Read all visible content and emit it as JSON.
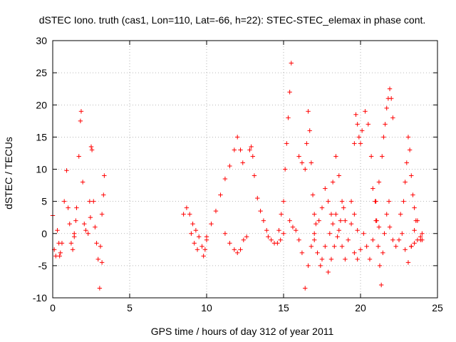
{
  "chart_data": {
    "type": "scatter",
    "title": "dSTEC Iono. truth (cas1, Lon=110, Lat=-66, h=22): STEC-STEC_elemax in phase cont.",
    "xlabel": "GPS time / hours of day 312 of year 2011",
    "ylabel": "dSTEC  / TECUs",
    "xlim": [
      0,
      25
    ],
    "ylim": [
      -10,
      30
    ],
    "x_ticks": [
      0,
      5,
      10,
      15,
      20,
      25
    ],
    "y_ticks": [
      -10,
      -5,
      0,
      5,
      10,
      15,
      20,
      25,
      30
    ],
    "x_tick_labels": [
      "0",
      "5",
      "10",
      "15",
      "20",
      "25"
    ],
    "y_tick_labels": [
      "-10",
      "-5",
      "0",
      "5",
      "10",
      "15",
      "20",
      "25",
      "30"
    ],
    "grid": true,
    "marker": "+",
    "series": [
      {
        "name": "STEC-STEC_elemax",
        "color": "#ff0000",
        "arcs": [
          {
            "x": [
              0.0,
              0.1,
              0.2,
              0.3,
              0.4,
              0.5
            ],
            "y": [
              2.8,
              -2.5,
              -3.5,
              0.5,
              -1.5,
              -3.0
            ]
          },
          {
            "x": [
              0.45,
              0.6,
              0.75,
              0.9,
              1.0,
              1.1,
              1.2,
              1.3,
              1.4,
              1.5
            ],
            "y": [
              -3.5,
              -1.5,
              5.0,
              9.8,
              4.0,
              1.5,
              -1.5,
              -2.5,
              -0.5,
              2.0
            ]
          },
          {
            "x": [
              1.4,
              1.55,
              1.7,
              1.8,
              1.85,
              1.95,
              2.05,
              2.15,
              2.3,
              2.45
            ],
            "y": [
              0.0,
              4.0,
              12.0,
              17.5,
              19.0,
              8.0,
              1.5,
              0.5,
              0.0,
              2.5
            ]
          },
          {
            "x": [
              2.4,
              2.5,
              2.55,
              2.65,
              2.75,
              2.85,
              2.95,
              3.05,
              3.2,
              3.35
            ],
            "y": [
              5.0,
              13.5,
              13.0,
              5.0,
              1.0,
              -1.5,
              -4.0,
              -8.5,
              -4.5,
              9.0
            ]
          },
          {
            "x": [
              3.1,
              3.2,
              3.3
            ],
            "y": [
              -2.0,
              3.0,
              6.0
            ]
          },
          {
            "x": [
              8.5,
              8.7,
              8.9,
              9.1,
              9.3,
              9.5,
              9.7,
              9.8,
              9.9,
              10.0
            ],
            "y": [
              3.0,
              4.0,
              3.0,
              1.5,
              0.5,
              -0.5,
              -2.0,
              -3.5,
              -2.5,
              -1.0
            ]
          },
          {
            "x": [
              9.0,
              9.2,
              9.4
            ],
            "y": [
              0.0,
              -1.5,
              -2.5
            ]
          },
          {
            "x": [
              10.0,
              10.3,
              10.6,
              10.9,
              11.2,
              11.5,
              11.8,
              12.0,
              12.2,
              12.35
            ],
            "y": [
              -0.5,
              1.5,
              3.5,
              6.0,
              8.5,
              10.5,
              13.0,
              15.0,
              13.0,
              11.0
            ]
          },
          {
            "x": [
              11.2,
              11.5,
              11.8,
              12.0,
              12.2,
              12.4,
              12.6
            ],
            "y": [
              0.0,
              -1.5,
              -2.5,
              -3.0,
              -2.5,
              -1.0,
              -0.5
            ]
          },
          {
            "x": [
              12.8,
              12.9,
              13.0,
              13.1,
              13.3,
              13.5,
              13.7,
              13.9,
              14.0,
              14.2,
              14.4,
              14.6,
              14.8,
              15.0
            ],
            "y": [
              13.0,
              13.5,
              12.0,
              9.0,
              5.5,
              3.5,
              2.0,
              0.5,
              -0.5,
              -1.0,
              -1.5,
              -1.5,
              -1.0,
              0.0
            ]
          },
          {
            "x": [
              14.7,
              14.85,
              15.0,
              15.1,
              15.2,
              15.3,
              15.4,
              15.5
            ],
            "y": [
              0.5,
              3.0,
              5.0,
              10.0,
              14.0,
              18.0,
              22.0,
              26.5
            ]
          },
          {
            "x": [
              15.4,
              15.6,
              15.8,
              16.0,
              16.2,
              16.4,
              16.6,
              16.8,
              17.0
            ],
            "y": [
              2.0,
              1.0,
              0.5,
              -1.0,
              -3.0,
              -8.5,
              -5.0,
              -2.0,
              0.0
            ]
          },
          {
            "x": [
              16.0,
              16.2,
              16.4,
              16.5,
              16.6,
              16.7,
              16.8,
              16.9,
              17.0,
              17.1
            ],
            "y": [
              12.0,
              11.0,
              10.0,
              14.0,
              19.0,
              16.0,
              11.0,
              6.0,
              3.0,
              1.5
            ]
          },
          {
            "x": [
              17.0,
              17.2,
              17.4,
              17.5,
              17.7,
              17.9,
              18.1,
              18.3,
              18.5,
              18.7,
              18.9
            ],
            "y": [
              -1.0,
              -3.0,
              -5.0,
              -4.0,
              -2.0,
              -6.0,
              -4.0,
              -2.0,
              -0.5,
              2.0,
              4.0
            ]
          },
          {
            "x": [
              17.3,
              17.5,
              17.7,
              17.9,
              18.1,
              18.2,
              18.4,
              18.6,
              18.8,
              19.0
            ],
            "y": [
              2.0,
              4.0,
              7.0,
              5.0,
              3.0,
              8.0,
              12.0,
              9.0,
              5.0,
              2.0
            ]
          },
          {
            "x": [
              18.0,
              18.2,
              18.4,
              18.6,
              18.8,
              19.0,
              19.2,
              19.4,
              19.6,
              19.8
            ],
            "y": [
              0.0,
              1.5,
              3.0,
              0.5,
              -2.0,
              -4.0,
              -1.0,
              1.5,
              3.0,
              0.5
            ]
          },
          {
            "x": [
              19.4,
              19.6,
              19.7,
              19.8,
              19.9,
              20.0,
              20.1,
              20.3,
              20.5,
              20.7
            ],
            "y": [
              5.0,
              14.0,
              18.5,
              17.0,
              15.0,
              14.0,
              16.0,
              19.0,
              17.0,
              12.0
            ]
          },
          {
            "x": [
              19.6,
              19.8,
              20.0,
              20.2,
              20.4,
              20.6,
              20.8,
              21.0,
              21.2
            ],
            "y": [
              -3.0,
              -4.0,
              -2.5,
              0.0,
              -2.0,
              -4.0,
              -1.0,
              2.0,
              1.0
            ]
          },
          {
            "x": [
              20.8,
              20.95,
              21.05,
              21.15,
              21.25,
              21.35,
              21.45,
              21.55,
              21.7,
              21.85
            ],
            "y": [
              7.0,
              5.0,
              2.0,
              -2.0,
              -5.0,
              -8.0,
              -3.0,
              0.0,
              3.0,
              5.0
            ]
          },
          {
            "x": [
              21.0,
              21.2,
              21.4,
              21.5,
              21.6,
              21.7,
              21.8,
              21.9,
              22.0,
              22.1
            ],
            "y": [
              5.0,
              8.0,
              12.0,
              15.0,
              17.0,
              19.5,
              21.0,
              22.5,
              21.0,
              18.0
            ]
          },
          {
            "x": [
              21.9,
              22.1,
              22.3,
              22.5,
              22.7,
              22.9,
              23.1,
              23.3,
              23.5,
              23.7,
              23.9,
              24.0
            ],
            "y": [
              1.0,
              -1.0,
              -2.0,
              -1.0,
              0.0,
              -2.5,
              -4.5,
              -2.0,
              0.5,
              2.0,
              -1.0,
              0.0
            ]
          },
          {
            "x": [
              22.6,
              22.8,
              22.9,
              23.0,
              23.1,
              23.2,
              23.3,
              23.4,
              23.5,
              23.6
            ],
            "y": [
              3.0,
              5.0,
              8.0,
              11.0,
              15.0,
              13.0,
              9.0,
              6.0,
              4.0,
              2.0
            ]
          },
          {
            "x": [
              23.3,
              23.5,
              23.7,
              23.9,
              24.0
            ],
            "y": [
              -2.0,
              -1.5,
              -1.0,
              -0.5,
              -1.0
            ]
          }
        ]
      }
    ]
  }
}
